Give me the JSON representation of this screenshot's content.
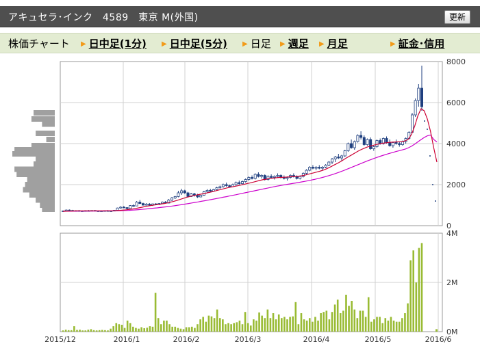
{
  "header": {
    "title": "アキュセラ･インク　4589　東京 M(外国)",
    "refresh_label": "更新"
  },
  "nav": {
    "label": "株価チャート",
    "items": [
      {
        "label": "日中足(1分)",
        "link": true
      },
      {
        "label": "日中足(5分)",
        "link": true
      },
      {
        "label": "日足",
        "link": false
      },
      {
        "label": "週足",
        "link": true
      },
      {
        "label": "月足",
        "link": true
      },
      {
        "label": "証金･信用",
        "link": true
      }
    ]
  },
  "colors": {
    "up_candle": "#ffffff",
    "down_candle": "#1f3f7f",
    "ma_short": "#cc0033",
    "ma_long": "#cc00cc",
    "volume": "#99bb33",
    "volume_profile": "#a0a0a0",
    "grid": "#d0d0d0"
  },
  "chart_data": [
    {
      "type": "line",
      "subtype": "candlestick",
      "title": "",
      "y_ticks": [
        "0",
        "2000",
        "4000",
        "6000",
        "8000"
      ],
      "ylim": [
        0,
        8000
      ],
      "x_ticks": [
        "2015/12",
        "2016/1",
        "2016/2",
        "2016/3",
        "2016/4",
        "2016/5",
        "2016/6"
      ],
      "grid": true,
      "candles": [
        [
          700,
          740,
          680,
          720
        ],
        [
          720,
          790,
          700,
          760
        ],
        [
          760,
          790,
          720,
          740
        ],
        [
          740,
          770,
          700,
          720
        ],
        [
          720,
          750,
          690,
          730
        ],
        [
          730,
          760,
          700,
          720
        ],
        [
          720,
          740,
          690,
          710
        ],
        [
          710,
          750,
          690,
          730
        ],
        [
          730,
          760,
          700,
          720
        ],
        [
          720,
          750,
          700,
          740
        ],
        [
          740,
          760,
          710,
          720
        ],
        [
          720,
          740,
          690,
          710
        ],
        [
          710,
          740,
          690,
          720
        ],
        [
          720,
          740,
          700,
          730
        ],
        [
          730,
          760,
          700,
          720
        ],
        [
          720,
          740,
          700,
          710
        ],
        [
          710,
          760,
          700,
          750
        ],
        [
          750,
          880,
          740,
          860
        ],
        [
          860,
          950,
          830,
          900
        ],
        [
          900,
          960,
          860,
          880
        ],
        [
          880,
          900,
          800,
          830
        ],
        [
          830,
          1000,
          820,
          980
        ],
        [
          980,
          1040,
          920,
          960
        ],
        [
          960,
          1200,
          950,
          1150
        ],
        [
          1150,
          1250,
          1050,
          1080
        ],
        [
          1080,
          1120,
          980,
          1000
        ],
        [
          1000,
          1100,
          980,
          1050
        ],
        [
          1050,
          1100,
          980,
          1000
        ],
        [
          1000,
          1080,
          960,
          1060
        ],
        [
          1060,
          1100,
          1000,
          1030
        ],
        [
          1030,
          1100,
          1000,
          1080
        ],
        [
          1080,
          1180,
          1060,
          1150
        ],
        [
          1150,
          1200,
          1080,
          1100
        ],
        [
          1100,
          1300,
          1090,
          1250
        ],
        [
          1250,
          1400,
          1200,
          1350
        ],
        [
          1350,
          1450,
          1300,
          1420
        ],
        [
          1420,
          1700,
          1380,
          1600
        ],
        [
          1600,
          1800,
          1500,
          1700
        ],
        [
          1700,
          1750,
          1550,
          1600
        ],
        [
          1600,
          1650,
          1380,
          1420
        ],
        [
          1420,
          1600,
          1400,
          1550
        ],
        [
          1550,
          1600,
          1420,
          1480
        ],
        [
          1480,
          1550,
          1350,
          1400
        ],
        [
          1400,
          1500,
          1380,
          1480
        ],
        [
          1480,
          1700,
          1450,
          1650
        ],
        [
          1650,
          1780,
          1600,
          1720
        ],
        [
          1720,
          1800,
          1650,
          1680
        ],
        [
          1680,
          1800,
          1650,
          1760
        ],
        [
          1760,
          1900,
          1700,
          1850
        ],
        [
          1850,
          1950,
          1800,
          1900
        ],
        [
          1900,
          2050,
          1850,
          2000
        ],
        [
          2000,
          2100,
          1900,
          1950
        ],
        [
          1950,
          2000,
          1850,
          1900
        ],
        [
          1900,
          2050,
          1880,
          2000
        ],
        [
          2000,
          2150,
          1950,
          2100
        ],
        [
          2100,
          2200,
          2000,
          2050
        ],
        [
          2050,
          2200,
          2000,
          2150
        ],
        [
          2150,
          2300,
          2100,
          2250
        ],
        [
          2250,
          2400,
          2200,
          2350
        ],
        [
          2350,
          2450,
          2250,
          2300
        ],
        [
          2300,
          2550,
          2250,
          2500
        ],
        [
          2500,
          2600,
          2350,
          2400
        ],
        [
          2400,
          2500,
          2300,
          2450
        ],
        [
          2450,
          2500,
          2200,
          2250
        ],
        [
          2250,
          2450,
          2200,
          2400
        ],
        [
          2400,
          2500,
          2300,
          2350
        ],
        [
          2350,
          2450,
          2250,
          2400
        ],
        [
          2400,
          2550,
          2350,
          2450
        ],
        [
          2450,
          2500,
          2300,
          2350
        ],
        [
          2350,
          2450,
          2250,
          2300
        ],
        [
          2300,
          2400,
          2200,
          2350
        ],
        [
          2350,
          2500,
          2300,
          2450
        ],
        [
          2450,
          2550,
          2350,
          2400
        ],
        [
          2400,
          2450,
          2250,
          2300
        ],
        [
          2300,
          2450,
          2250,
          2400
        ],
        [
          2400,
          2600,
          2350,
          2550
        ],
        [
          2550,
          2750,
          2500,
          2700
        ],
        [
          2700,
          2900,
          2650,
          2850
        ],
        [
          2850,
          2950,
          2750,
          2800
        ],
        [
          2800,
          2900,
          2700,
          2850
        ],
        [
          2850,
          2950,
          2750,
          2800
        ],
        [
          2800,
          2900,
          2700,
          2850
        ],
        [
          2850,
          3000,
          2800,
          2950
        ],
        [
          2950,
          3150,
          2900,
          3100
        ],
        [
          3100,
          3300,
          3000,
          3250
        ],
        [
          3250,
          3400,
          3100,
          3350
        ],
        [
          3350,
          3500,
          3250,
          3300
        ],
        [
          3300,
          3450,
          3150,
          3400
        ],
        [
          3400,
          3700,
          3350,
          3650
        ],
        [
          3650,
          4050,
          3600,
          4000
        ],
        [
          4000,
          4200,
          3750,
          3800
        ],
        [
          3800,
          4150,
          3700,
          4100
        ],
        [
          4100,
          4450,
          4050,
          4400
        ],
        [
          4400,
          4600,
          4200,
          4300
        ],
        [
          4300,
          4400,
          3900,
          3950
        ],
        [
          3950,
          4250,
          3900,
          4200
        ],
        [
          4200,
          4300,
          3700,
          3750
        ],
        [
          3750,
          3900,
          3650,
          3850
        ],
        [
          3850,
          4200,
          3800,
          4150
        ],
        [
          4150,
          4250,
          3950,
          4000
        ],
        [
          4000,
          4300,
          3950,
          4250
        ],
        [
          4250,
          4350,
          4000,
          4050
        ],
        [
          4050,
          4200,
          3850,
          3900
        ],
        [
          3900,
          4100,
          3800,
          4050
        ],
        [
          4050,
          4200,
          3950,
          4000
        ],
        [
          4000,
          4100,
          3850,
          3950
        ],
        [
          3950,
          4150,
          3900,
          4100
        ],
        [
          4100,
          4300,
          4000,
          4250
        ],
        [
          4250,
          4600,
          4200,
          4550
        ],
        [
          4550,
          5500,
          4500,
          5400
        ],
        [
          5400,
          6200,
          5300,
          6100
        ],
        [
          6100,
          6900,
          5800,
          6700
        ],
        [
          6700,
          7800,
          5600,
          5800
        ]
      ],
      "points_after_halt": [
        5100,
        4700,
        3400,
        2000,
        1200
      ],
      "ma_short": {
        "name": "",
        "values": [
          700,
          705,
          710,
          715,
          720,
          722,
          722,
          722,
          722,
          722,
          722,
          722,
          722,
          722,
          722,
          722,
          724,
          732,
          745,
          760,
          775,
          795,
          815,
          840,
          870,
          900,
          935,
          960,
          985,
          1010,
          1030,
          1055,
          1080,
          1110,
          1145,
          1185,
          1230,
          1280,
          1330,
          1380,
          1420,
          1460,
          1490,
          1520,
          1550,
          1580,
          1615,
          1650,
          1690,
          1730,
          1770,
          1810,
          1845,
          1880,
          1910,
          1940,
          1975,
          2010,
          2045,
          2080,
          2120,
          2160,
          2200,
          2235,
          2265,
          2290,
          2310,
          2330,
          2345,
          2355,
          2365,
          2375,
          2385,
          2395,
          2405,
          2420,
          2450,
          2490,
          2530,
          2570,
          2610,
          2650,
          2700,
          2760,
          2830,
          2910,
          2990,
          3070,
          3160,
          3260,
          3350,
          3440,
          3530,
          3620,
          3700,
          3770,
          3830,
          3880,
          3920,
          3960,
          3990,
          4020,
          4040,
          4060,
          4070,
          4080,
          4090,
          4100,
          4130,
          4220,
          4450,
          4850,
          5350,
          5700,
          5600,
          5200,
          4600,
          3800,
          3100
        ]
      },
      "ma_long": {
        "name": "",
        "values": [
          700,
          702,
          704,
          706,
          708,
          710,
          711,
          712,
          713,
          714,
          715,
          716,
          717,
          718,
          719,
          720,
          721,
          724,
          728,
          733,
          740,
          748,
          757,
          768,
          780,
          793,
          806,
          820,
          836,
          852,
          868,
          885,
          902,
          920,
          940,
          960,
          983,
          1006,
          1030,
          1055,
          1080,
          1106,
          1132,
          1158,
          1185,
          1212,
          1240,
          1268,
          1297,
          1326,
          1355,
          1385,
          1415,
          1446,
          1477,
          1508,
          1540,
          1572,
          1604,
          1636,
          1668,
          1700,
          1732,
          1764,
          1796,
          1828,
          1860,
          1892,
          1922,
          1950,
          1978,
          2005,
          2030,
          2055,
          2080,
          2105,
          2132,
          2160,
          2190,
          2222,
          2255,
          2290,
          2328,
          2368,
          2410,
          2456,
          2505,
          2556,
          2610,
          2668,
          2728,
          2790,
          2852,
          2915,
          2978,
          3040,
          3102,
          3162,
          3220,
          3276,
          3330,
          3382,
          3432,
          3480,
          3526,
          3570,
          3612,
          3652,
          3692,
          3735,
          3800,
          3880,
          3980,
          4090,
          4200,
          4300,
          4380,
          4420,
          4200,
          4080
        ]
      }
    },
    {
      "type": "bar",
      "title": "",
      "y_ticks": [
        "0M",
        "2M",
        "4M"
      ],
      "ylim": [
        0,
        4
      ],
      "values": [
        0.05,
        0.08,
        0.06,
        0.06,
        0.22,
        0.07,
        0.08,
        0.05,
        0.05,
        0.08,
        0.1,
        0.06,
        0.05,
        0.06,
        0.07,
        0.06,
        0.05,
        0.12,
        0.22,
        0.35,
        0.3,
        0.28,
        0.15,
        0.45,
        0.35,
        0.2,
        0.15,
        0.12,
        0.18,
        0.14,
        0.16,
        0.22,
        0.2,
        1.58,
        0.55,
        0.3,
        0.45,
        0.45,
        0.3,
        0.2,
        0.2,
        0.15,
        0.12,
        0.1,
        0.18,
        0.18,
        0.2,
        0.15,
        0.3,
        0.5,
        0.6,
        0.4,
        0.65,
        0.62,
        0.55,
        0.9,
        0.55,
        0.5,
        0.3,
        0.35,
        0.3,
        0.35,
        0.38,
        0.45,
        0.3,
        0.8,
        0.35,
        0.25,
        0.5,
        0.45,
        0.78,
        0.65,
        0.55,
        0.9,
        0.55,
        0.75,
        0.5,
        0.7,
        0.55,
        0.6,
        0.5,
        0.6,
        0.62,
        1.2,
        0.3,
        0.75,
        0.5,
        0.45,
        0.55,
        0.4,
        0.6,
        0.45,
        0.75,
        0.8,
        0.85,
        0.5,
        0.8,
        1.1,
        1.3,
        0.75,
        0.85,
        1.5,
        1.05,
        1.25,
        0.9,
        0.55,
        0.85,
        0.85,
        0.6,
        1.4,
        0.4,
        0.5,
        0.6,
        0.6,
        0.35,
        0.55,
        0.45,
        0.6,
        0.45,
        0.4,
        0.4,
        0.55,
        0.75,
        1.15,
        2.9,
        3.3,
        2.0,
        3.4,
        3.6
      ]
    }
  ]
}
